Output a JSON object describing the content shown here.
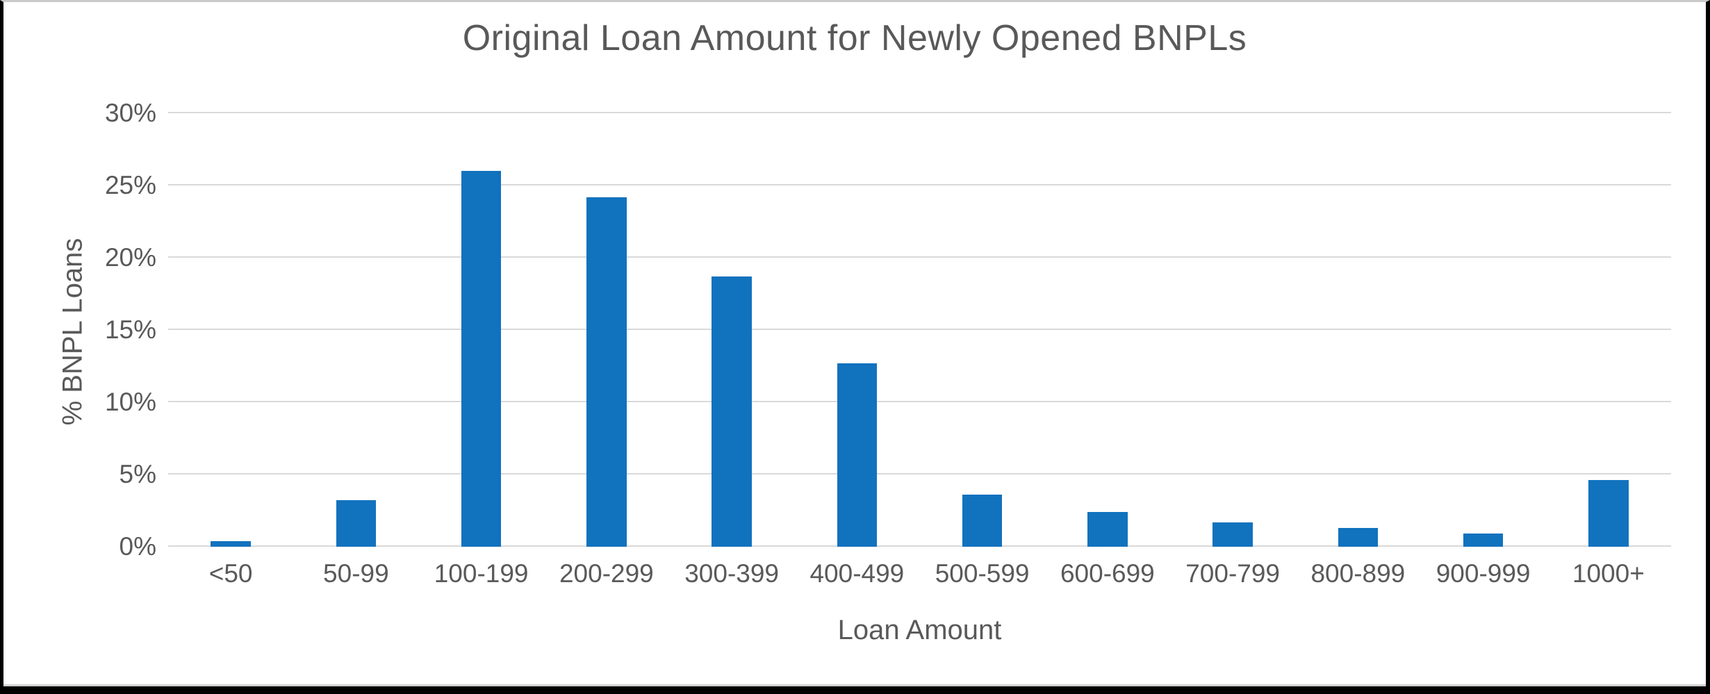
{
  "frame": {
    "border_color": "#000000",
    "top_line_color": "#c9c9c9",
    "background": "#ffffff"
  },
  "chart_data": {
    "type": "bar",
    "title": "Original Loan Amount for Newly Opened BNPLs",
    "xlabel": "Loan Amount",
    "ylabel": "% BNPL Loans",
    "categories": [
      "<50",
      "50-99",
      "100-199",
      "200-299",
      "300-399",
      "400-499",
      "500-599",
      "600-699",
      "700-799",
      "800-899",
      "900-999",
      "1000+"
    ],
    "values": [
      0.4,
      3.2,
      26.0,
      24.2,
      18.7,
      12.7,
      3.6,
      2.4,
      1.7,
      1.3,
      0.9,
      4.6
    ],
    "unit": "%",
    "ylim": [
      0,
      30
    ],
    "ytick_step": 5,
    "yticks": [
      "0%",
      "5%",
      "10%",
      "15%",
      "20%",
      "25%",
      "30%"
    ],
    "grid": "horizontal",
    "legend": "none",
    "bar_color": "#1172be",
    "gridline_color": "#d9d9d9",
    "text_color": "#595959"
  }
}
